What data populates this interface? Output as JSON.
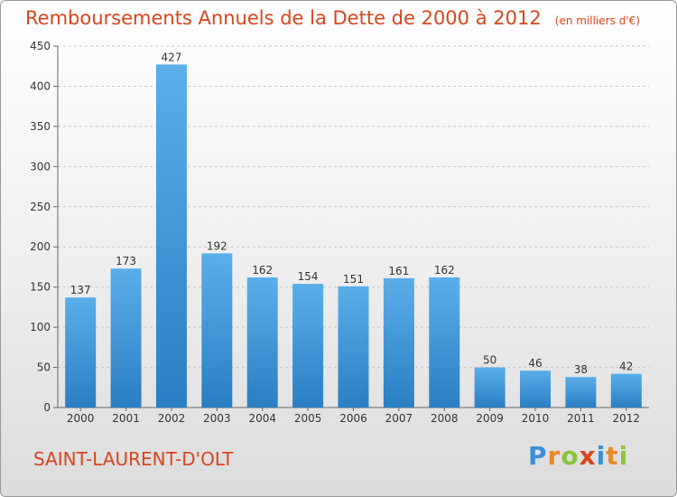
{
  "header": {
    "title": "Remboursements Annuels de la Dette de 2000 à 2012",
    "unit": "(en milliers d'€)"
  },
  "footer": {
    "commune": "SAINT-LAURENT-D'OLT",
    "logo": {
      "letters": [
        "P",
        "r",
        "o",
        "x",
        "i",
        "t",
        "i"
      ],
      "colors": [
        "#3a8fd6",
        "#e8892a",
        "#8cc43c",
        "#d9451c",
        "#3a8fd6",
        "#e8892a",
        "#8cc43c"
      ]
    }
  },
  "colors": {
    "bar_light": "#5aaee9",
    "bar_dark": "#2a7fc4",
    "text": "#333333",
    "title": "#d9451c"
  },
  "chart_data": {
    "type": "bar",
    "title": "Remboursements Annuels de la Dette de 2000 à 2012",
    "categories": [
      "2000",
      "2001",
      "2002",
      "2003",
      "2004",
      "2005",
      "2006",
      "2007",
      "2008",
      "2009",
      "2010",
      "2011",
      "2012"
    ],
    "values": [
      137,
      173,
      427,
      192,
      162,
      154,
      151,
      161,
      162,
      50,
      46,
      38,
      42
    ],
    "yticks": [
      0,
      50,
      100,
      150,
      200,
      250,
      300,
      350,
      400,
      450
    ],
    "ylim": [
      0,
      450
    ],
    "grid": true,
    "data_labels": true
  }
}
